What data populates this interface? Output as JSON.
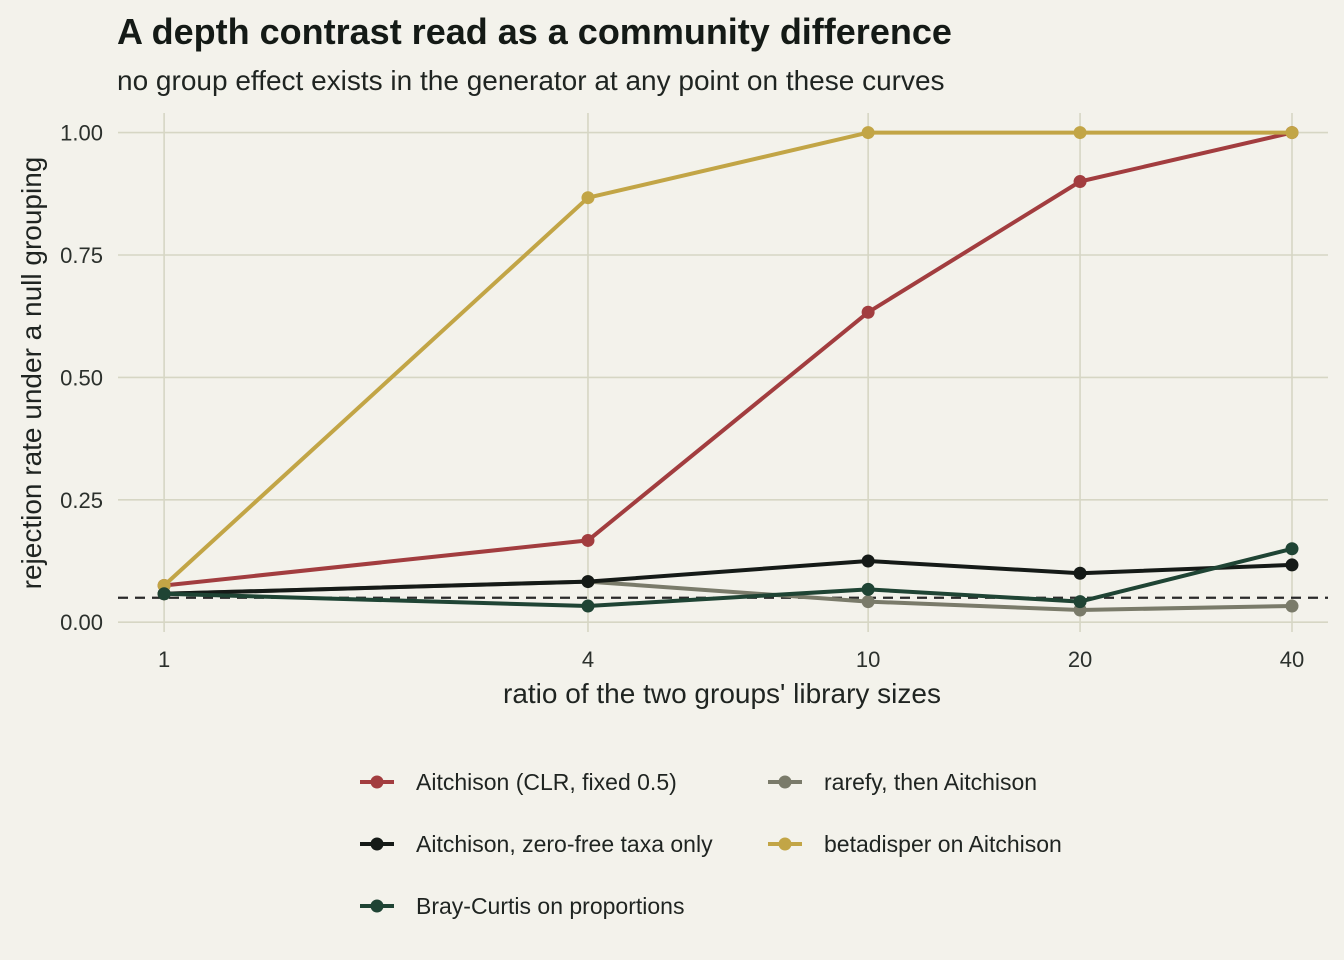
{
  "chart_data": {
    "type": "line",
    "title": "A depth contrast read as a community difference",
    "subtitle": "no group effect exists in the generator at any point on these curves",
    "xlabel": "ratio of the two groups' library sizes",
    "ylabel": "rejection rate under a null grouping",
    "x_scale": "log",
    "x": [
      1,
      4,
      10,
      20,
      40
    ],
    "x_tick_labels": [
      "1",
      "4",
      "10",
      "20",
      "40"
    ],
    "xlim": [
      0.86,
      45
    ],
    "y_ticks": [
      0,
      0.25,
      0.5,
      0.75,
      1
    ],
    "y_tick_labels": [
      "0.00",
      "0.25",
      "0.50",
      "0.75",
      "1.00"
    ],
    "ylim": [
      -0.02,
      1.04
    ],
    "reference_line": {
      "y": 0.05,
      "style": "dashed"
    },
    "grid": true,
    "legend_position": "bottom",
    "series": [
      {
        "name": "Aitchison (CLR, fixed 0.5)",
        "color": "#a23d3f",
        "values": [
          0.075,
          0.167,
          0.633,
          0.9,
          1.0
        ]
      },
      {
        "name": "rarefy, then Aitchison",
        "color": "#7a7b6a",
        "values": [
          0.058,
          0.083,
          0.042,
          0.025,
          0.033
        ]
      },
      {
        "name": "Aitchison, zero-free taxa only",
        "color": "#151a17",
        "values": [
          0.058,
          0.083,
          0.125,
          0.1,
          0.117
        ]
      },
      {
        "name": "betadisper on Aitchison",
        "color": "#c2a546",
        "values": [
          0.075,
          0.867,
          1.0,
          1.0,
          1.0
        ]
      },
      {
        "name": "Bray-Curtis on proportions",
        "color": "#1f4434",
        "values": [
          0.058,
          0.033,
          0.067,
          0.042,
          0.15
        ]
      }
    ]
  }
}
